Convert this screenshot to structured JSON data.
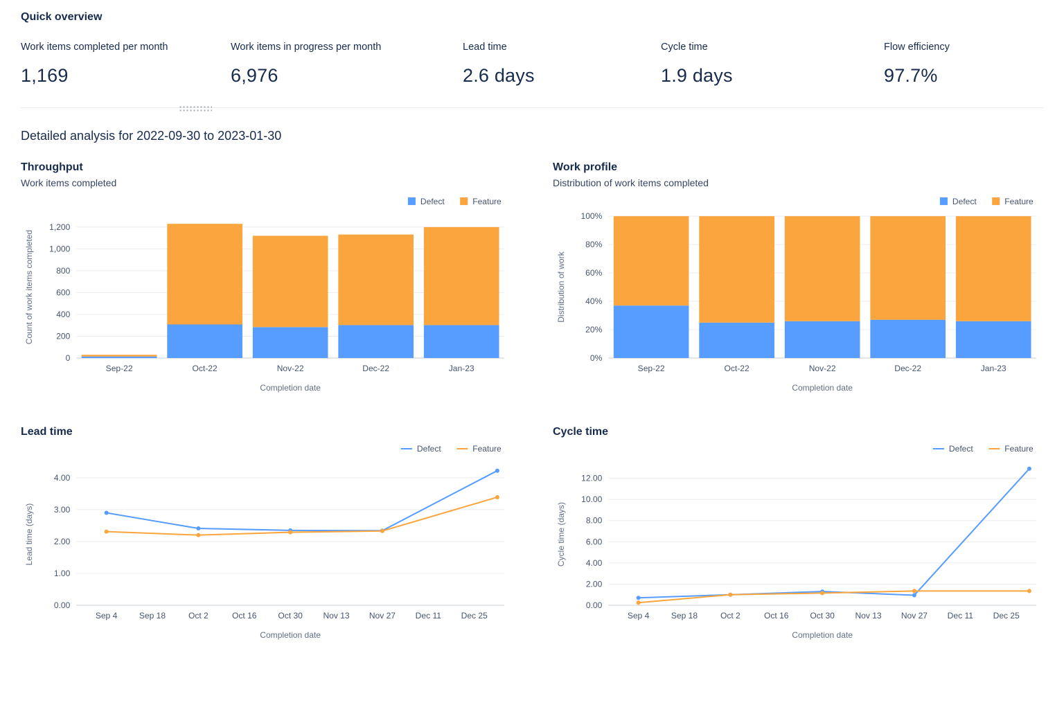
{
  "quick_overview": {
    "title": "Quick overview",
    "metrics": [
      {
        "label": "Work items completed per month",
        "value": "1,169"
      },
      {
        "label": "Work items in progress per month",
        "value": "6,976"
      },
      {
        "label": "Lead time",
        "value": "2.6 days"
      },
      {
        "label": "Cycle time",
        "value": "1.9 days"
      },
      {
        "label": "Flow efficiency",
        "value": "97.7%"
      }
    ]
  },
  "detailed_analysis": {
    "title": "Detailed analysis for 2022-09-30 to 2023-01-30"
  },
  "colors": {
    "defect": "#579DFF",
    "feature": "#FAA53D",
    "gridline": "#EBECF0",
    "axis": "#C7CDD6"
  },
  "chart_data": [
    {
      "id": "throughput",
      "type": "bar",
      "stacked": true,
      "title": "Throughput",
      "subtitle": "Work items completed",
      "categories": [
        "Sep-22",
        "Oct-22",
        "Nov-22",
        "Dec-22",
        "Jan-23"
      ],
      "series": [
        {
          "name": "Defect",
          "color": "#579DFF",
          "values": [
            14,
            308,
            283,
            302,
            302
          ]
        },
        {
          "name": "Feature",
          "color": "#FAA53D",
          "values": [
            16,
            922,
            837,
            830,
            898
          ]
        }
      ],
      "xlabel": "Completion date",
      "ylabel": "Count of work items completed",
      "ylim": [
        0,
        1300
      ],
      "yticks": [
        0,
        200,
        400,
        600,
        800,
        1000,
        1200
      ],
      "ytick_labels": [
        "0",
        "200",
        "400",
        "600",
        "800",
        "1,000",
        "1,200"
      ],
      "legend_position": "top-right",
      "grid": true
    },
    {
      "id": "work-profile",
      "type": "bar",
      "stacked": true,
      "title": "Work profile",
      "subtitle": "Distribution of work items completed",
      "categories": [
        "Sep-22",
        "Oct-22",
        "Nov-22",
        "Dec-22",
        "Jan-23"
      ],
      "series": [
        {
          "name": "Defect",
          "color": "#579DFF",
          "values": [
            37,
            25,
            26,
            27,
            26
          ]
        },
        {
          "name": "Feature",
          "color": "#FAA53D",
          "values": [
            63,
            75,
            74,
            73,
            74
          ]
        }
      ],
      "xlabel": "Completion date",
      "ylabel": "Distribution of work",
      "ylim": [
        0,
        100
      ],
      "yticks": [
        0,
        20,
        40,
        60,
        80,
        100
      ],
      "ytick_labels": [
        "0%",
        "20%",
        "40%",
        "60%",
        "80%",
        "100%"
      ],
      "legend_position": "top-right",
      "grid": true
    },
    {
      "id": "lead-time",
      "type": "line",
      "title": "Lead time",
      "x_tick_labels": [
        "Sep 4",
        "Sep 18",
        "Oct 2",
        "Oct 16",
        "Oct 30",
        "Nov 13",
        "Nov 27",
        "Dec 11",
        "Dec 25"
      ],
      "series": [
        {
          "name": "Defect",
          "color": "#579DFF",
          "x": [
            0,
            2,
            4,
            6,
            8.5
          ],
          "values": [
            2.9,
            2.41,
            2.35,
            2.34,
            4.22
          ]
        },
        {
          "name": "Feature",
          "color": "#FAA53D",
          "x": [
            0,
            2,
            4,
            6,
            8.5
          ],
          "values": [
            2.31,
            2.2,
            2.29,
            2.33,
            3.39
          ]
        }
      ],
      "xlabel": "Completion date",
      "ylabel": "Lead time (days)",
      "ylim": [
        0,
        4.45
      ],
      "yticks": [
        0,
        1,
        2,
        3,
        4
      ],
      "ytick_labels": [
        "0.00",
        "1.00",
        "2.00",
        "3.00",
        "4.00"
      ],
      "legend_position": "top-right",
      "grid": true
    },
    {
      "id": "cycle-time",
      "type": "line",
      "title": "Cycle time",
      "x_tick_labels": [
        "Sep 4",
        "Sep 18",
        "Oct 2",
        "Oct 16",
        "Oct 30",
        "Nov 13",
        "Nov 27",
        "Dec 11",
        "Dec 25"
      ],
      "series": [
        {
          "name": "Defect",
          "color": "#579DFF",
          "x": [
            0,
            2,
            4,
            6,
            8.5
          ],
          "values": [
            0.7,
            1.0,
            1.3,
            0.95,
            12.9
          ]
        },
        {
          "name": "Feature",
          "color": "#FAA53D",
          "x": [
            0,
            2,
            4,
            6,
            8.5
          ],
          "values": [
            0.25,
            1.0,
            1.15,
            1.35,
            1.35
          ]
        }
      ],
      "xlabel": "Completion date",
      "ylabel": "Cycle time (days)",
      "ylim": [
        0,
        13.4
      ],
      "yticks": [
        0,
        2,
        4,
        6,
        8,
        10,
        12
      ],
      "ytick_labels": [
        "0.00",
        "2.00",
        "4.00",
        "6.00",
        "8.00",
        "10.00",
        "12.00"
      ],
      "legend_position": "top-right",
      "grid": true
    }
  ]
}
